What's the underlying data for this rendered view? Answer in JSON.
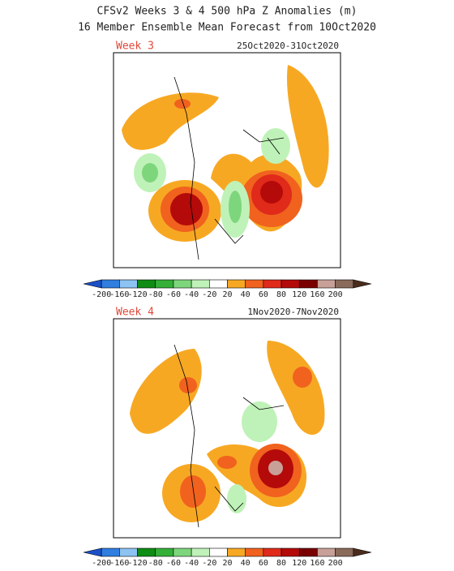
{
  "header": {
    "title_line1": "CFSv2 Weeks 3 & 4 500 hPa Z Anomalies (m)",
    "title_line2": "16 Member Ensemble Mean Forecast from 10Oct2020"
  },
  "panels": [
    {
      "label": "Week 3",
      "dates": "25Oct2020-31Oct2020"
    },
    {
      "label": "Week 4",
      "dates": "1Nov2020-7Nov2020"
    }
  ],
  "colorbar": {
    "ticks": [
      -200,
      -160,
      -120,
      -80,
      -60,
      -40,
      -20,
      20,
      40,
      60,
      80,
      120,
      160,
      200
    ],
    "colors": [
      "#1a50c8",
      "#2f7ee0",
      "#8cc3f2",
      "#0f8c14",
      "#34b038",
      "#7ed67c",
      "#bff2b8",
      "#ffffff",
      "#f7a823",
      "#f0621e",
      "#e02a1a",
      "#b40a0a",
      "#7a0000",
      "#c8a098",
      "#8a6a5a",
      "#4a2c1c"
    ]
  }
}
